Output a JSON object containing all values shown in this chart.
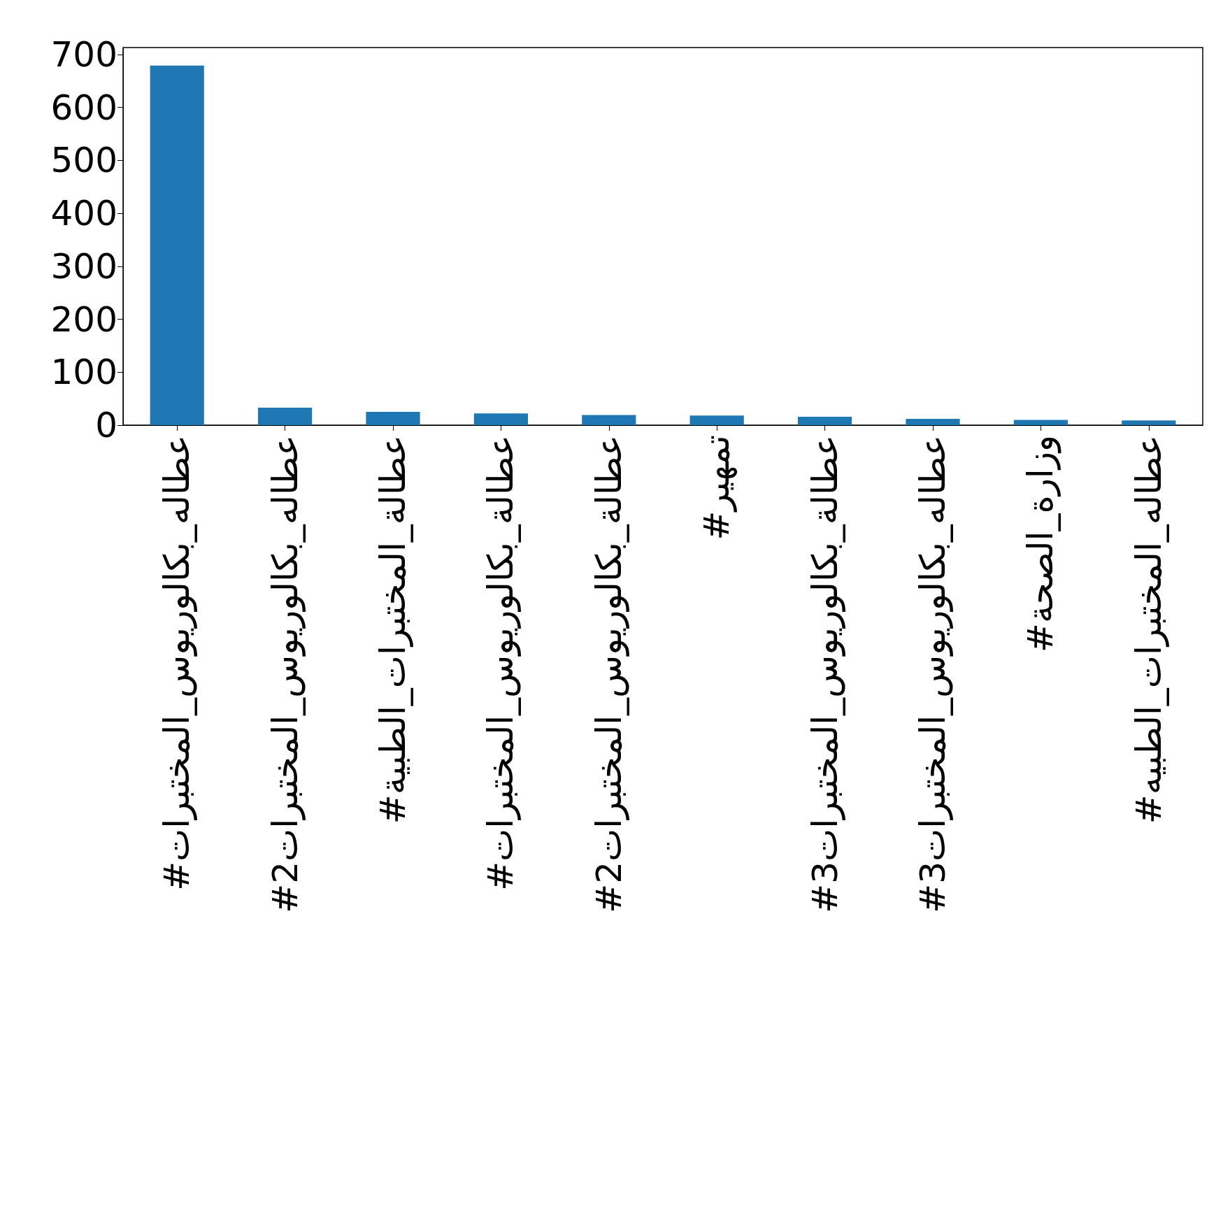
{
  "chart_data": {
    "type": "bar",
    "categories": [
      "#عطاله_بكالوريوس_المختبرات",
      "#عطاله_بكالوريوس_المختبرات2",
      "#عطالة_المختبرات_الطبية",
      "#عطالة_بكالوريوس_المختبرات",
      "#عطالة_بكالوريوس_المختبرات2",
      "#تمهير",
      "#عطالة_بكالوريوس_المختبرات3",
      "#عطاله_بكالوريوس_المختبرات3",
      "#وزارة_الصحة",
      "#عطاله_المختبرات_الطبيه"
    ],
    "values": [
      679,
      33,
      25,
      22,
      19,
      18,
      16,
      12,
      10,
      9
    ],
    "color": "#1f77b4",
    "ylim": [
      0,
      713
    ],
    "yticks": [
      0,
      100,
      200,
      300,
      400,
      500,
      600,
      700
    ]
  }
}
